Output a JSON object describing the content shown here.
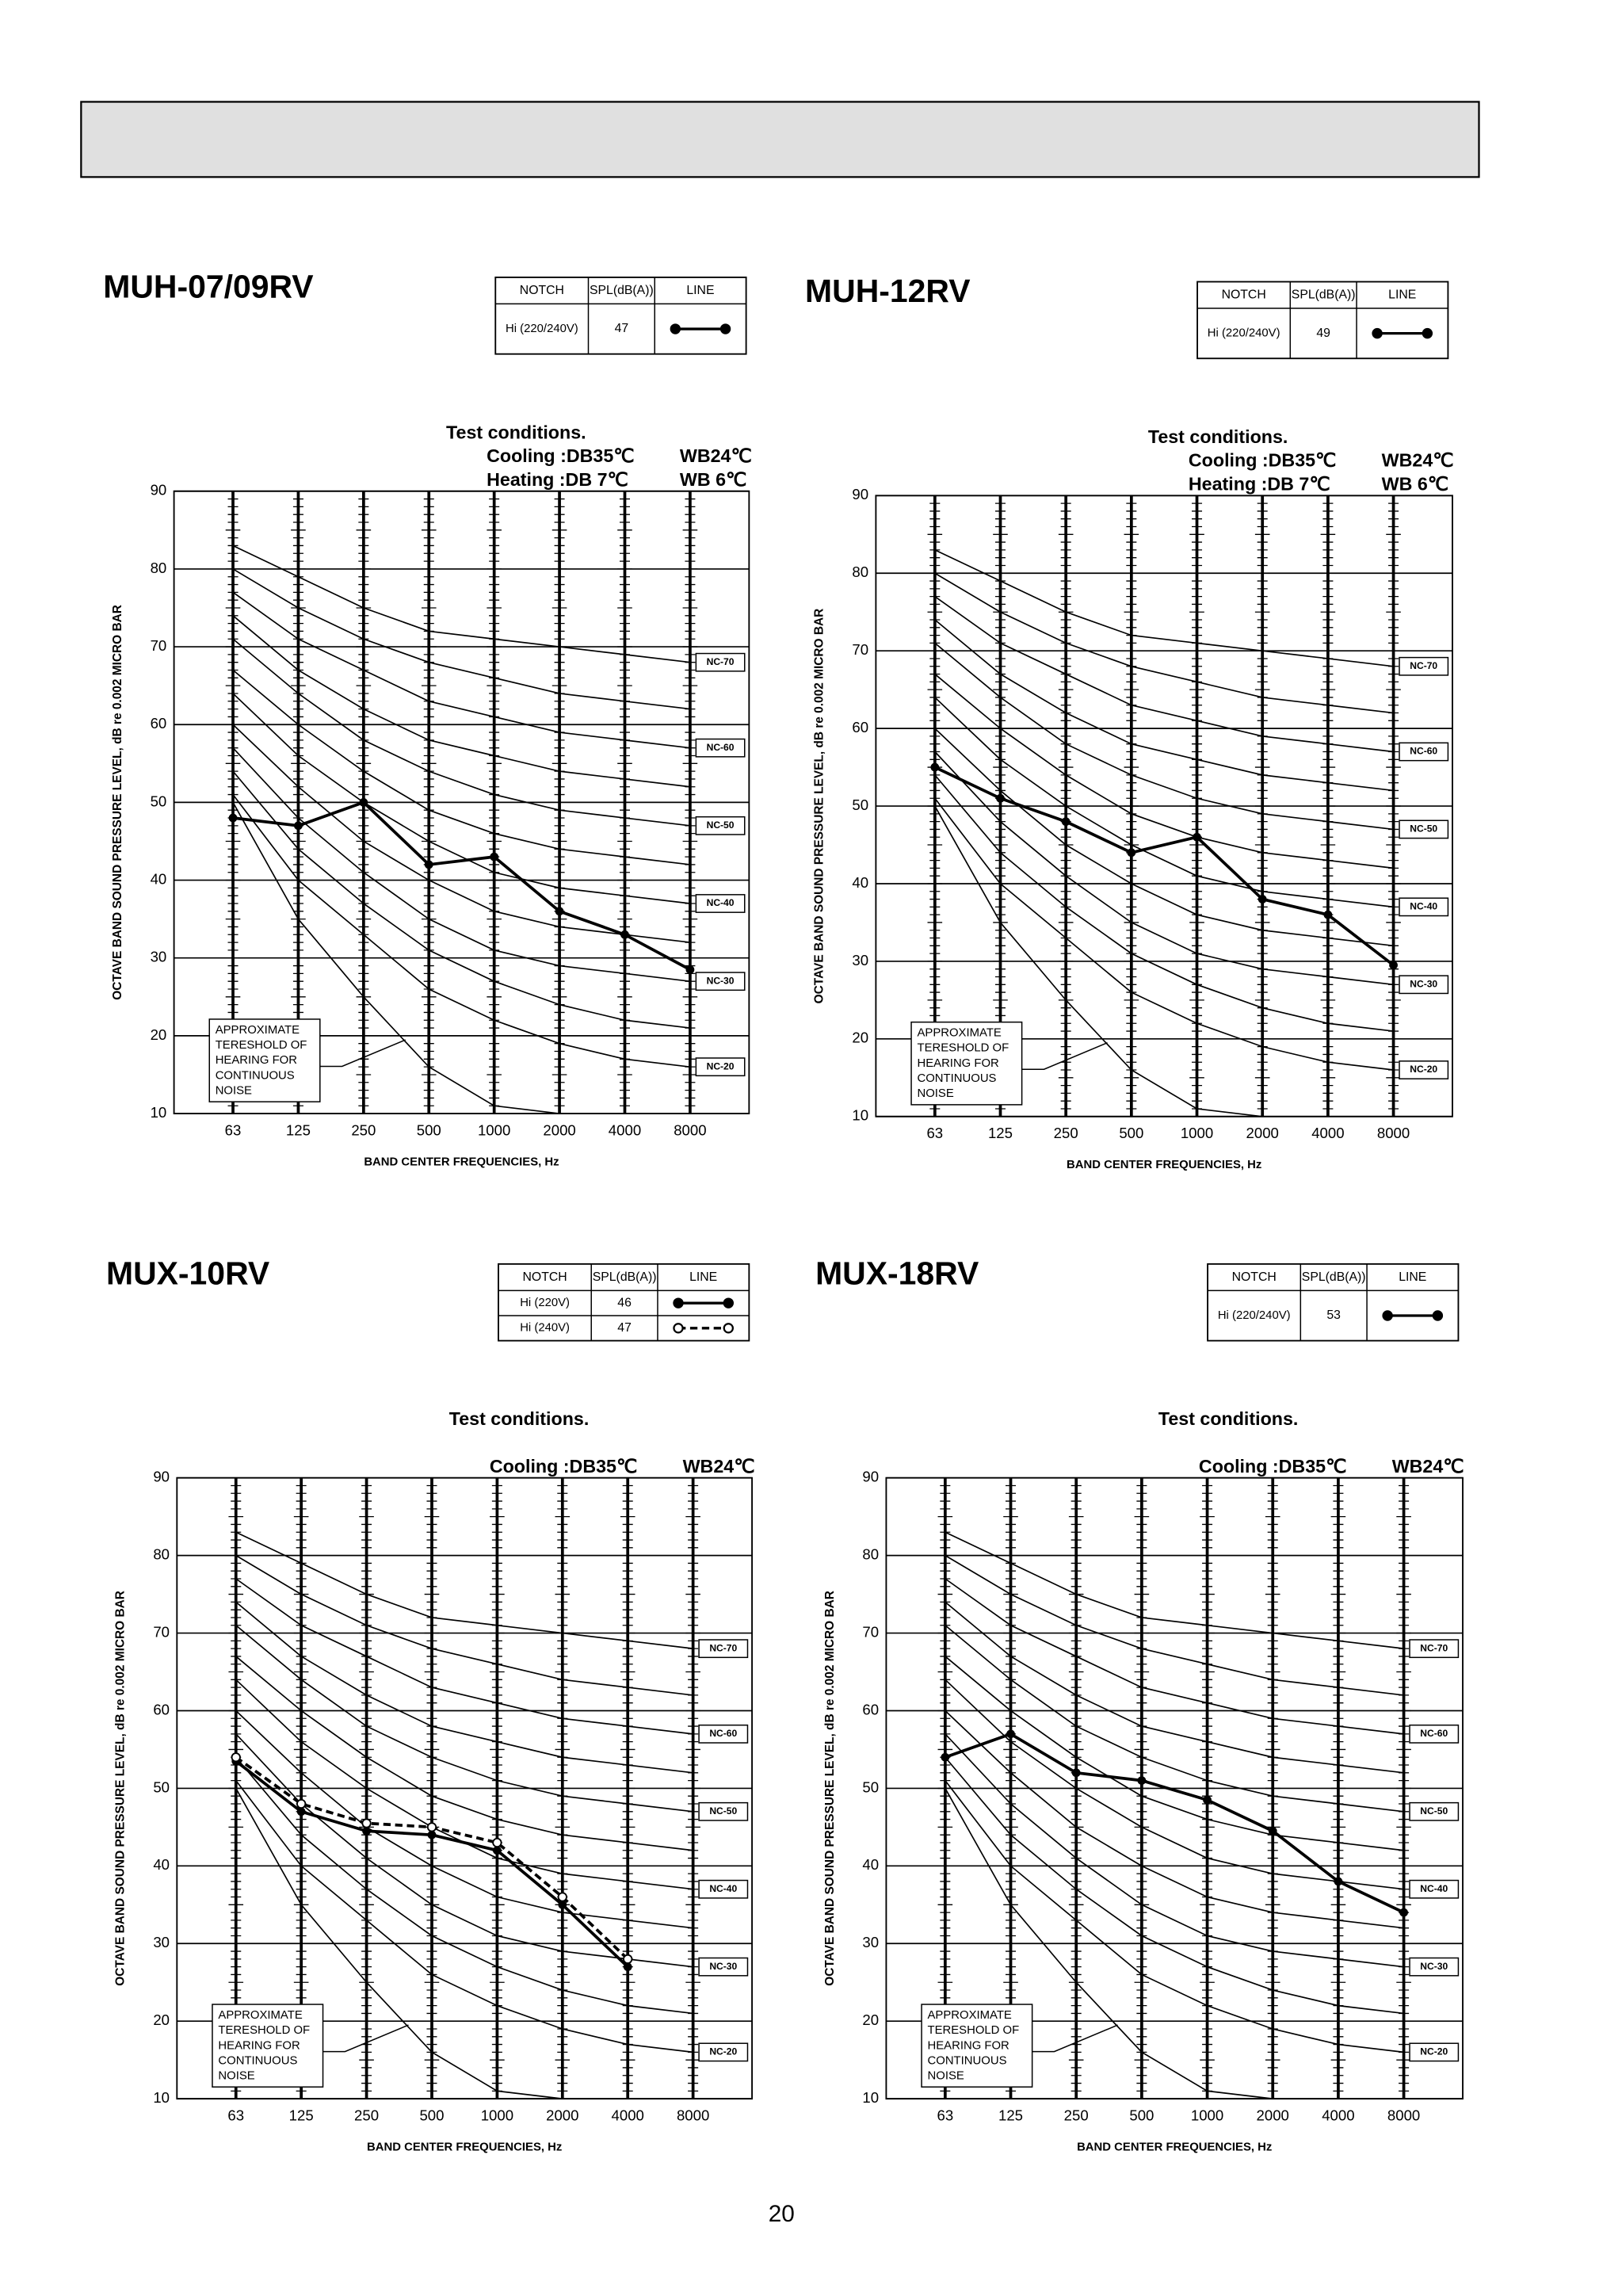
{
  "page_number": "20",
  "chart_data": [
    {
      "type": "line",
      "title": "MUH-07/09RV",
      "table_header": [
        "NOTCH",
        "SPL(dB(A))",
        "LINE"
      ],
      "test_conditions": {
        "title": "Test conditions.",
        "rows": [
          [
            "Cooling :DB35℃",
            "WB24℃"
          ],
          [
            "Heating :DB 7℃",
            "WB 6℃"
          ]
        ]
      },
      "categories": [
        "63",
        "125",
        "250",
        "500",
        "1000",
        "2000",
        "4000",
        "8000"
      ],
      "x_label": "BAND CENTER FREQUENCIES, Hz",
      "y_label": "OCTAVE BAND SOUND PRESSURE LEVEL, dB re 0.002 MICRO BAR",
      "ylim": [
        10,
        90
      ],
      "yticks": [
        10,
        20,
        30,
        40,
        50,
        60,
        70,
        80,
        90
      ],
      "grid": true,
      "series": [
        {
          "name": "Hi (220/240V)",
          "spl": 47,
          "color": "#000",
          "line_style": "solid",
          "marker": "filled",
          "values": [
            48,
            47,
            50,
            42,
            43,
            36,
            33,
            28.5
          ]
        }
      ],
      "nc_curves": [
        {
          "label": "NC-70",
          "values": [
            83,
            79,
            75,
            72,
            71,
            70,
            69,
            68
          ]
        },
        {
          "label": null,
          "values": [
            80,
            75,
            71,
            68,
            66,
            64,
            63,
            62
          ]
        },
        {
          "label": "NC-60",
          "values": [
            77,
            71,
            67,
            63,
            61,
            59,
            58,
            57
          ]
        },
        {
          "label": null,
          "values": [
            74,
            67,
            62,
            58,
            56,
            54,
            53,
            52
          ]
        },
        {
          "label": "NC-50",
          "values": [
            71,
            64,
            58,
            54,
            51,
            49,
            48,
            47
          ]
        },
        {
          "label": null,
          "values": [
            67,
            60,
            54,
            49,
            46,
            44,
            43,
            42
          ]
        },
        {
          "label": "NC-40",
          "values": [
            64,
            56,
            50,
            45,
            41,
            39,
            38,
            37
          ]
        },
        {
          "label": null,
          "values": [
            60,
            52,
            45,
            40,
            36,
            34,
            33,
            32
          ]
        },
        {
          "label": "NC-30",
          "values": [
            57,
            48,
            41,
            35,
            31,
            29,
            28,
            27
          ]
        },
        {
          "label": null,
          "values": [
            54,
            44,
            37,
            31,
            27,
            24,
            22,
            21
          ]
        },
        {
          "label": "NC-20",
          "values": [
            51,
            40,
            33,
            26,
            22,
            19,
            17,
            16
          ]
        }
      ],
      "threshold_curve": [
        50,
        35,
        25,
        16,
        11,
        10,
        null,
        null
      ],
      "threshold_note": [
        "APPROXIMATE",
        "TERESHOLD OF",
        "HEARING FOR",
        "CONTINUOUS",
        "NOISE"
      ]
    },
    {
      "type": "line",
      "title": "MUH-12RV",
      "table_header": [
        "NOTCH",
        "SPL(dB(A))",
        "LINE"
      ],
      "test_conditions": {
        "title": "Test conditions.",
        "rows": [
          [
            "Cooling :DB35℃",
            "WB24℃"
          ],
          [
            "Heating :DB 7℃",
            "WB 6℃"
          ]
        ]
      },
      "categories": [
        "63",
        "125",
        "250",
        "500",
        "1000",
        "2000",
        "4000",
        "8000"
      ],
      "x_label": "BAND CENTER FREQUENCIES, Hz",
      "y_label": "OCTAVE BAND SOUND PRESSURE LEVEL, dB re 0.002 MICRO BAR",
      "ylim": [
        10,
        90
      ],
      "yticks": [
        10,
        20,
        30,
        40,
        50,
        60,
        70,
        80,
        90
      ],
      "grid": true,
      "series": [
        {
          "name": "Hi (220/240V)",
          "spl": 49,
          "color": "#000",
          "line_style": "solid",
          "marker": "filled",
          "values": [
            55,
            51,
            48,
            44,
            46,
            38,
            36,
            29.5
          ]
        }
      ],
      "nc_curves": [
        {
          "label": "NC-70",
          "values": [
            83,
            79,
            75,
            72,
            71,
            70,
            69,
            68
          ]
        },
        {
          "label": null,
          "values": [
            80,
            75,
            71,
            68,
            66,
            64,
            63,
            62
          ]
        },
        {
          "label": "NC-60",
          "values": [
            77,
            71,
            67,
            63,
            61,
            59,
            58,
            57
          ]
        },
        {
          "label": null,
          "values": [
            74,
            67,
            62,
            58,
            56,
            54,
            53,
            52
          ]
        },
        {
          "label": "NC-50",
          "values": [
            71,
            64,
            58,
            54,
            51,
            49,
            48,
            47
          ]
        },
        {
          "label": null,
          "values": [
            67,
            60,
            54,
            49,
            46,
            44,
            43,
            42
          ]
        },
        {
          "label": "NC-40",
          "values": [
            64,
            56,
            50,
            45,
            41,
            39,
            38,
            37
          ]
        },
        {
          "label": null,
          "values": [
            60,
            52,
            45,
            40,
            36,
            34,
            33,
            32
          ]
        },
        {
          "label": "NC-30",
          "values": [
            57,
            48,
            41,
            35,
            31,
            29,
            28,
            27
          ]
        },
        {
          "label": null,
          "values": [
            54,
            44,
            37,
            31,
            27,
            24,
            22,
            21
          ]
        },
        {
          "label": "NC-20",
          "values": [
            51,
            40,
            33,
            26,
            22,
            19,
            17,
            16
          ]
        }
      ],
      "threshold_curve": [
        50,
        35,
        25,
        16,
        11,
        10,
        null,
        null
      ],
      "threshold_note": [
        "APPROXIMATE",
        "TERESHOLD OF",
        "HEARING FOR",
        "CONTINUOUS",
        "NOISE"
      ]
    },
    {
      "type": "line",
      "title": "MUX-10RV",
      "table_header": [
        "NOTCH",
        "SPL(dB(A))",
        "LINE"
      ],
      "test_conditions": {
        "title": "Test conditions.",
        "rows": [
          [
            "Cooling :DB35℃",
            "WB24℃"
          ]
        ]
      },
      "categories": [
        "63",
        "125",
        "250",
        "500",
        "1000",
        "2000",
        "4000",
        "8000"
      ],
      "x_label": "BAND CENTER FREQUENCIES, Hz",
      "y_label": "OCTAVE BAND SOUND PRESSURE LEVEL, dB re 0.002 MICRO BAR",
      "ylim": [
        10,
        90
      ],
      "yticks": [
        10,
        20,
        30,
        40,
        50,
        60,
        70,
        80,
        90
      ],
      "grid": true,
      "series": [
        {
          "name": "Hi (220V)",
          "spl": 46,
          "color": "#000",
          "line_style": "solid",
          "marker": "filled",
          "values": [
            53.5,
            47,
            44.5,
            44,
            42,
            35,
            27,
            null
          ]
        },
        {
          "name": "Hi (240V)",
          "spl": 47,
          "color": "#000",
          "line_style": "dashed",
          "marker": "open",
          "values": [
            54,
            48,
            45.5,
            45,
            43,
            36,
            28,
            null
          ]
        }
      ],
      "nc_curves": [
        {
          "label": "NC-70",
          "values": [
            83,
            79,
            75,
            72,
            71,
            70,
            69,
            68
          ]
        },
        {
          "label": null,
          "values": [
            80,
            75,
            71,
            68,
            66,
            64,
            63,
            62
          ]
        },
        {
          "label": "NC-60",
          "values": [
            77,
            71,
            67,
            63,
            61,
            59,
            58,
            57
          ]
        },
        {
          "label": null,
          "values": [
            74,
            67,
            62,
            58,
            56,
            54,
            53,
            52
          ]
        },
        {
          "label": "NC-50",
          "values": [
            71,
            64,
            58,
            54,
            51,
            49,
            48,
            47
          ]
        },
        {
          "label": null,
          "values": [
            67,
            60,
            54,
            49,
            46,
            44,
            43,
            42
          ]
        },
        {
          "label": "NC-40",
          "values": [
            64,
            56,
            50,
            45,
            41,
            39,
            38,
            37
          ]
        },
        {
          "label": null,
          "values": [
            60,
            52,
            45,
            40,
            36,
            34,
            33,
            32
          ]
        },
        {
          "label": "NC-30",
          "values": [
            57,
            48,
            41,
            35,
            31,
            29,
            28,
            27
          ]
        },
        {
          "label": null,
          "values": [
            54,
            44,
            37,
            31,
            27,
            24,
            22,
            21
          ]
        },
        {
          "label": "NC-20",
          "values": [
            51,
            40,
            33,
            26,
            22,
            19,
            17,
            16
          ]
        }
      ],
      "threshold_curve": [
        50,
        35,
        25,
        16,
        11,
        10,
        null,
        null
      ],
      "threshold_note": [
        "APPROXIMATE",
        "TERESHOLD OF",
        "HEARING FOR",
        "CONTINUOUS",
        "NOISE"
      ]
    },
    {
      "type": "line",
      "title": "MUX-18RV",
      "table_header": [
        "NOTCH",
        "SPL(dB(A))",
        "LINE"
      ],
      "test_conditions": {
        "title": "Test conditions.",
        "rows": [
          [
            "Cooling :DB35℃",
            "WB24℃"
          ]
        ]
      },
      "categories": [
        "63",
        "125",
        "250",
        "500",
        "1000",
        "2000",
        "4000",
        "8000"
      ],
      "x_label": "BAND CENTER FREQUENCIES, Hz",
      "y_label": "OCTAVE BAND SOUND PRESSURE LEVEL, dB re 0.002 MICRO BAR",
      "ylim": [
        10,
        90
      ],
      "yticks": [
        10,
        20,
        30,
        40,
        50,
        60,
        70,
        80,
        90
      ],
      "grid": true,
      "series": [
        {
          "name": "Hi (220/240V)",
          "spl": 53,
          "color": "#000",
          "line_style": "solid",
          "marker": "filled",
          "values": [
            54,
            57,
            52,
            51,
            48.5,
            44.5,
            38,
            34
          ]
        }
      ],
      "nc_curves": [
        {
          "label": "NC-70",
          "values": [
            83,
            79,
            75,
            72,
            71,
            70,
            69,
            68
          ]
        },
        {
          "label": null,
          "values": [
            80,
            75,
            71,
            68,
            66,
            64,
            63,
            62
          ]
        },
        {
          "label": "NC-60",
          "values": [
            77,
            71,
            67,
            63,
            61,
            59,
            58,
            57
          ]
        },
        {
          "label": null,
          "values": [
            74,
            67,
            62,
            58,
            56,
            54,
            53,
            52
          ]
        },
        {
          "label": "NC-50",
          "values": [
            71,
            64,
            58,
            54,
            51,
            49,
            48,
            47
          ]
        },
        {
          "label": null,
          "values": [
            67,
            60,
            54,
            49,
            46,
            44,
            43,
            42
          ]
        },
        {
          "label": "NC-40",
          "values": [
            64,
            56,
            50,
            45,
            41,
            39,
            38,
            37
          ]
        },
        {
          "label": null,
          "values": [
            60,
            52,
            45,
            40,
            36,
            34,
            33,
            32
          ]
        },
        {
          "label": "NC-30",
          "values": [
            57,
            48,
            41,
            35,
            31,
            29,
            28,
            27
          ]
        },
        {
          "label": null,
          "values": [
            54,
            44,
            37,
            31,
            27,
            24,
            22,
            21
          ]
        },
        {
          "label": "NC-20",
          "values": [
            51,
            40,
            33,
            26,
            22,
            19,
            17,
            16
          ]
        }
      ],
      "threshold_curve": [
        50,
        35,
        25,
        16,
        11,
        10,
        null,
        null
      ],
      "threshold_note": [
        "APPROXIMATE",
        "TERESHOLD OF",
        "HEARING FOR",
        "CONTINUOUS",
        "NOISE"
      ]
    }
  ]
}
